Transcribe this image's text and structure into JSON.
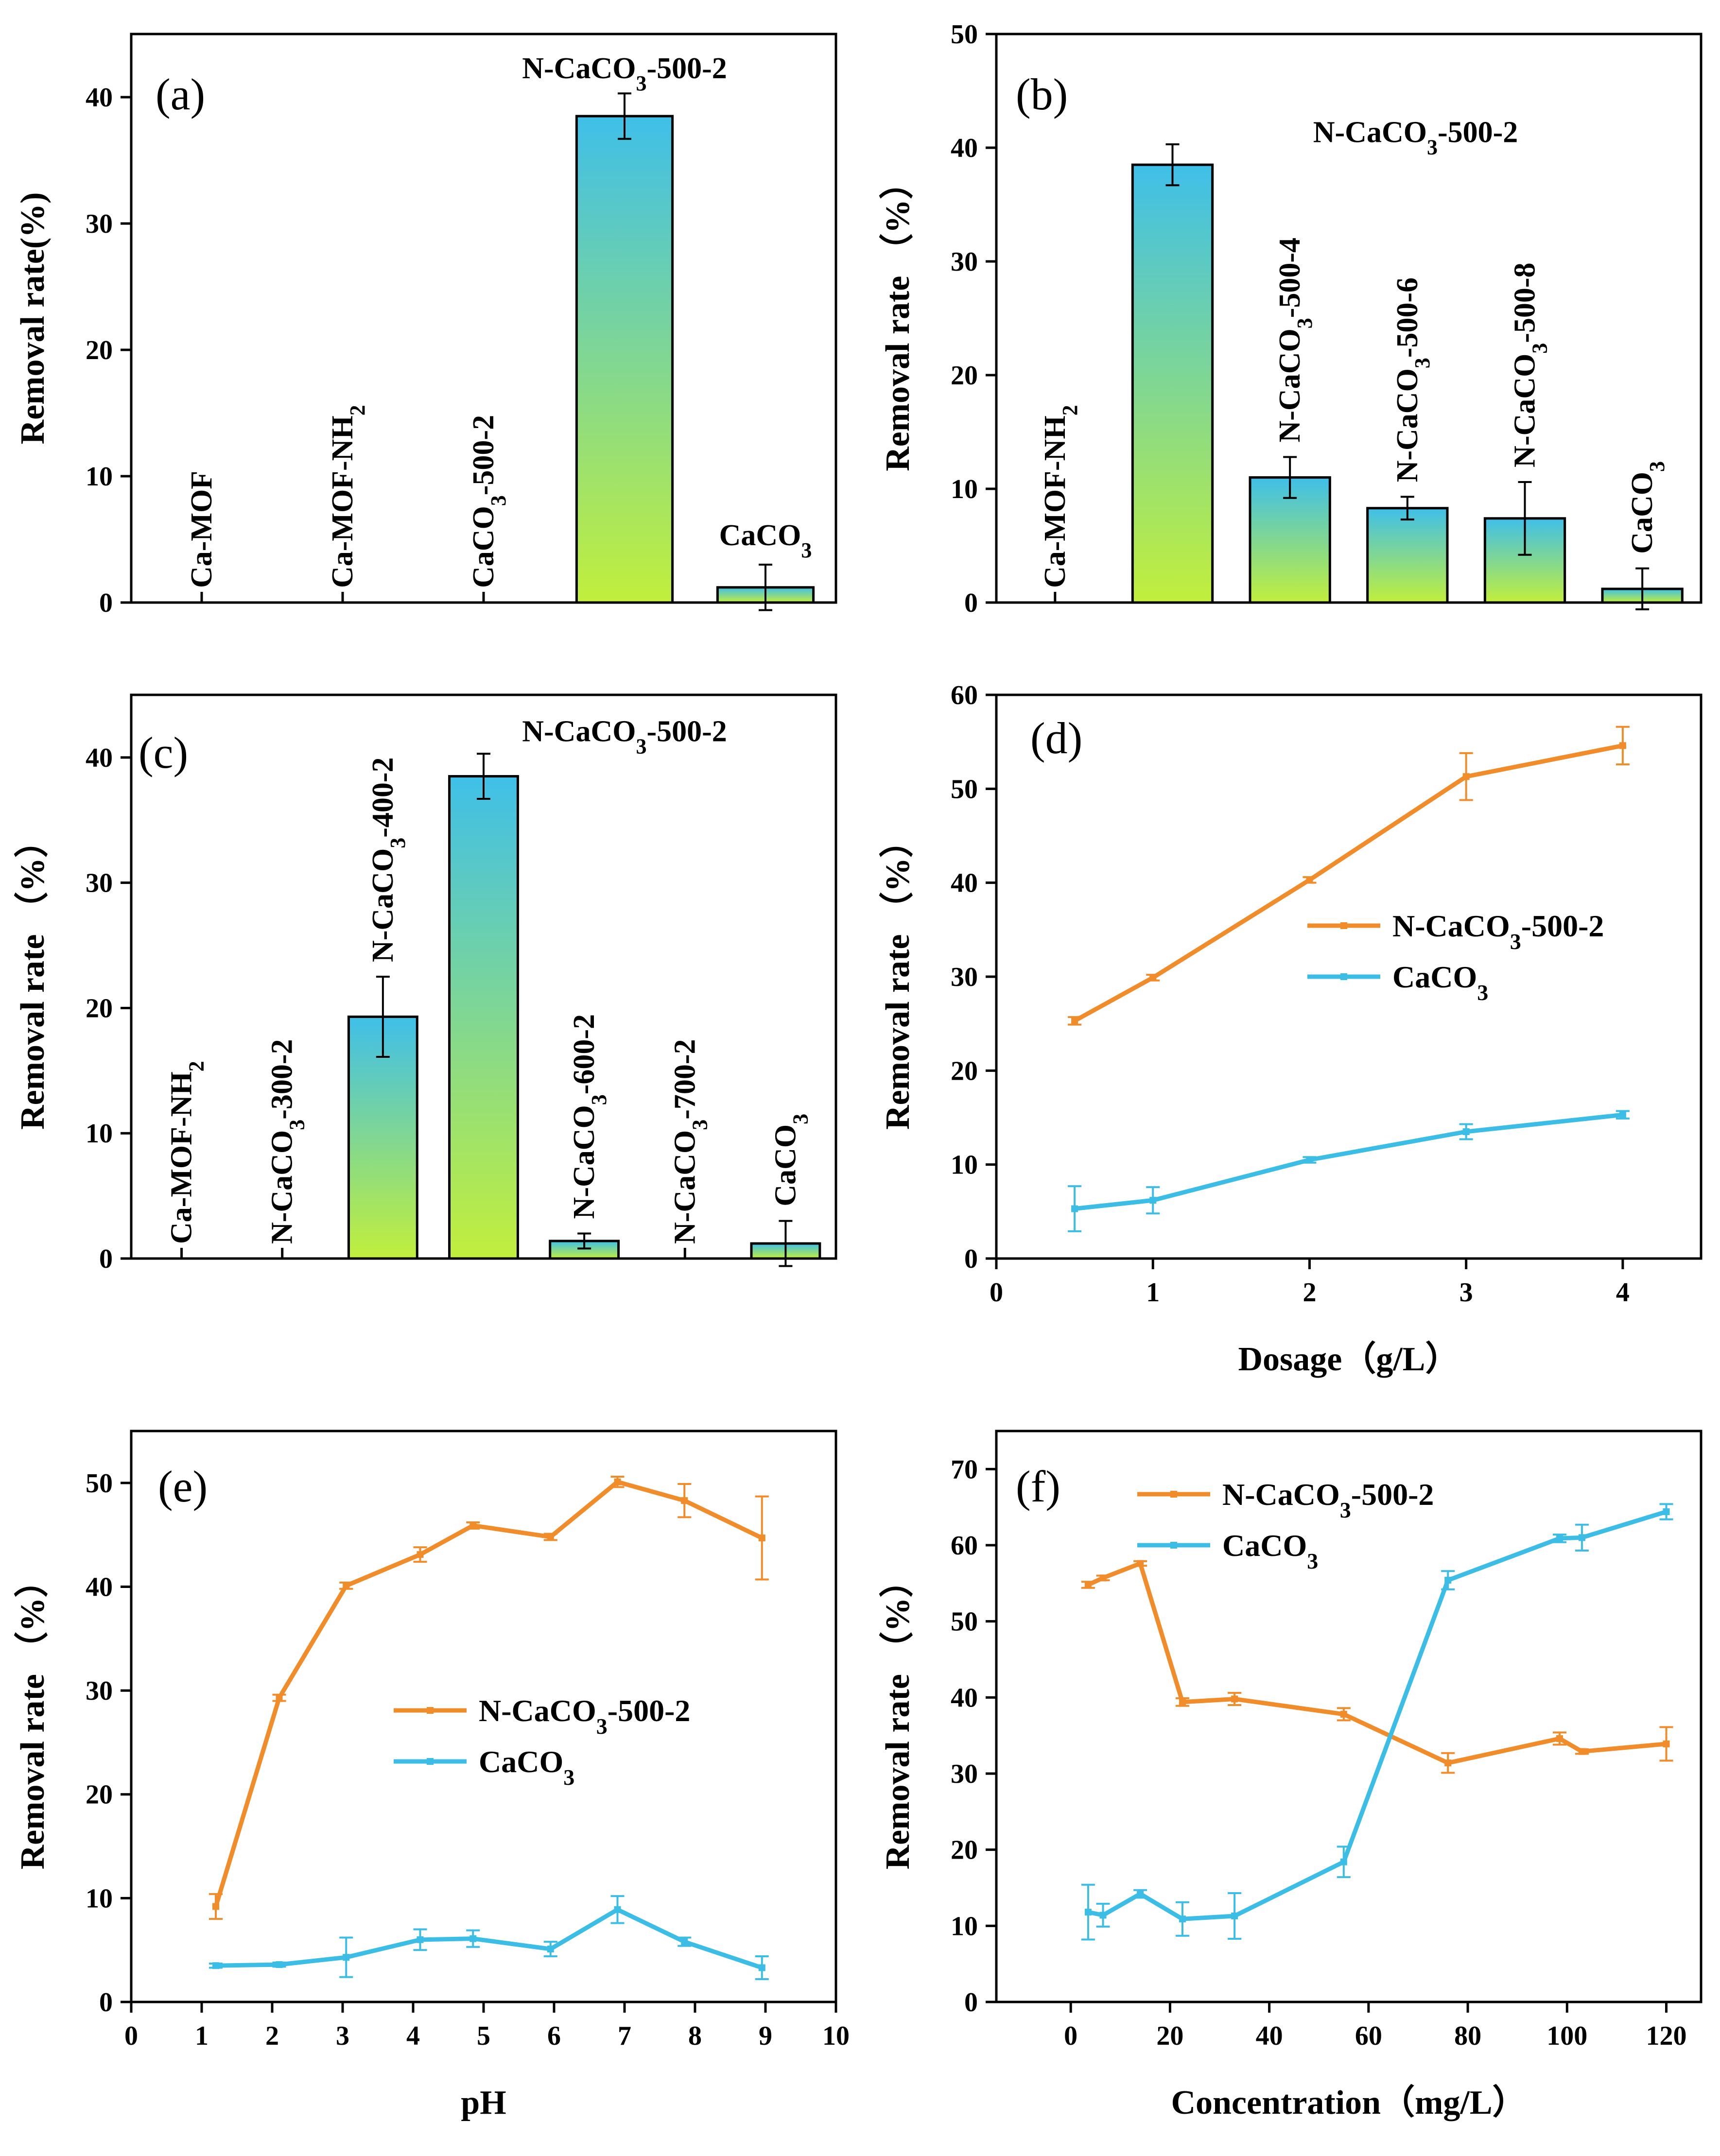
{
  "colors": {
    "orange": "#f08c2a",
    "blue": "#3cbde6",
    "bar_top": "#3fbfe9",
    "bar_bottom": "#c2ef3c"
  },
  "chart_data": [
    {
      "id": "a",
      "type": "bar",
      "panel_label": "(a)",
      "ylabel": "Removal rate(%)",
      "xlabel": "",
      "ylim": [
        0,
        45
      ],
      "yticks": [
        0,
        10,
        20,
        30,
        40
      ],
      "bar_labels": [
        {
          "base": "Ca-MOF",
          "sub": "",
          "tail": ""
        },
        {
          "base": "Ca-MOF-NH",
          "sub": "2",
          "tail": ""
        },
        {
          "base": "CaCO",
          "sub": "3",
          "tail": "-500-2"
        },
        {
          "base": "N-CaCO",
          "sub": "3",
          "tail": "-500-2"
        },
        {
          "base": "CaCO",
          "sub": "3",
          "tail": ""
        }
      ],
      "values": [
        0,
        0,
        0,
        38.5,
        1.2
      ],
      "errors": [
        0,
        0,
        0,
        1.8,
        1.8
      ]
    },
    {
      "id": "b",
      "type": "bar",
      "panel_label": "(b)",
      "ylabel": "Removal rate （%）",
      "xlabel": "",
      "ylim": [
        0,
        50
      ],
      "yticks": [
        0,
        10,
        20,
        30,
        40,
        50
      ],
      "bar_labels": [
        {
          "base": "Ca-MOF-NH",
          "sub": "2",
          "tail": ""
        },
        {
          "base": "N-CaCO",
          "sub": "3",
          "tail": "-500-2"
        },
        {
          "base": "N-CaCO",
          "sub": "3",
          "tail": "-500-4"
        },
        {
          "base": "N-CaCO",
          "sub": "3",
          "tail": "-500-6"
        },
        {
          "base": "N-CaCO",
          "sub": "3",
          "tail": "-500-8"
        },
        {
          "base": "CaCO",
          "sub": "3",
          "tail": ""
        }
      ],
      "values": [
        0,
        38.5,
        11.0,
        8.3,
        7.4,
        1.2
      ],
      "errors": [
        0,
        1.8,
        1.8,
        1.0,
        3.2,
        1.8
      ]
    },
    {
      "id": "c",
      "type": "bar",
      "panel_label": "(c)",
      "ylabel": "Removal rate （%）",
      "xlabel": "",
      "ylim": [
        0,
        45
      ],
      "yticks": [
        0,
        10,
        20,
        30,
        40
      ],
      "bar_labels": [
        {
          "base": "Ca-MOF-NH",
          "sub": "2",
          "tail": ""
        },
        {
          "base": "N-CaCO",
          "sub": "3",
          "tail": "-300-2"
        },
        {
          "base": "N-CaCO",
          "sub": "3",
          "tail": "-400-2"
        },
        {
          "base": "N-CaCO",
          "sub": "3",
          "tail": "-500-2"
        },
        {
          "base": "N-CaCO",
          "sub": "3",
          "tail": "-600-2"
        },
        {
          "base": "N-CaCO",
          "sub": "3",
          "tail": "-700-2"
        },
        {
          "base": "CaCO",
          "sub": "3",
          "tail": ""
        }
      ],
      "values": [
        0,
        0,
        19.3,
        38.5,
        1.4,
        0,
        1.2
      ],
      "errors": [
        0,
        0,
        3.2,
        1.8,
        0.6,
        0,
        1.8
      ]
    },
    {
      "id": "d",
      "type": "line",
      "panel_label": "(d)",
      "xlabel": "Dosage（g/L）",
      "ylabel": "Removal rate （%）",
      "xlim": [
        0,
        4.5
      ],
      "ylim": [
        0,
        60
      ],
      "xticks": [
        0,
        1,
        2,
        3,
        4
      ],
      "yticks": [
        0,
        10,
        20,
        30,
        40,
        50,
        60
      ],
      "series": [
        {
          "name_base": "N-CaCO",
          "name_sub": "3",
          "name_tail": "-500-2",
          "color": "#f08c2a",
          "x": [
            0.5,
            1,
            2,
            3,
            4
          ],
          "y": [
            25.3,
            29.9,
            40.3,
            51.3,
            54.6
          ],
          "err": [
            0.4,
            0.3,
            0.3,
            2.5,
            2.0
          ]
        },
        {
          "name_base": "CaCO",
          "name_sub": "3",
          "name_tail": "",
          "color": "#3cbde6",
          "x": [
            0.5,
            1,
            2,
            3,
            4
          ],
          "y": [
            5.3,
            6.2,
            10.5,
            13.5,
            15.3
          ],
          "err": [
            2.4,
            1.4,
            0.3,
            0.8,
            0.4
          ]
        }
      ]
    },
    {
      "id": "e",
      "type": "line",
      "panel_label": "(e)",
      "xlabel": "pH",
      "ylabel": "Removal rate （%）",
      "xlim": [
        0,
        10
      ],
      "ylim": [
        0,
        55
      ],
      "xticks": [
        0,
        1,
        2,
        3,
        4,
        5,
        6,
        7,
        8,
        9,
        10
      ],
      "yticks": [
        0,
        10,
        20,
        30,
        40,
        50
      ],
      "series": [
        {
          "name_base": "N-CaCO",
          "name_sub": "3",
          "name_tail": "-500-2",
          "color": "#f08c2a",
          "x": [
            1.2,
            2.1,
            3.05,
            4.1,
            4.85,
            5.95,
            6.9,
            7.85,
            8.95
          ],
          "y": [
            9.2,
            29.3,
            40.1,
            43.1,
            45.9,
            44.8,
            50.1,
            48.3,
            44.7
          ],
          "err": [
            1.2,
            0.3,
            0.3,
            0.7,
            0.3,
            0.3,
            0.5,
            1.6,
            4.0
          ]
        },
        {
          "name_base": "CaCO",
          "name_sub": "3",
          "name_tail": "",
          "color": "#3cbde6",
          "x": [
            1.2,
            2.1,
            3.05,
            4.1,
            4.85,
            5.95,
            6.9,
            7.85,
            8.95
          ],
          "y": [
            3.5,
            3.6,
            4.3,
            6.0,
            6.1,
            5.1,
            8.9,
            5.8,
            3.3
          ],
          "err": [
            0.2,
            0.2,
            1.9,
            1.0,
            0.8,
            0.7,
            1.3,
            0.4,
            1.1
          ]
        }
      ]
    },
    {
      "id": "f",
      "type": "line",
      "panel_label": "(f)",
      "xlabel": "Concentration（mg/L）",
      "ylabel": "Removal rate （%）",
      "xlim": [
        -15,
        127
      ],
      "ylim": [
        0,
        75
      ],
      "xticks": [
        0,
        20,
        40,
        60,
        80,
        100,
        120
      ],
      "yticks": [
        0,
        10,
        20,
        30,
        40,
        50,
        60,
        70
      ],
      "series": [
        {
          "name_base": "N-CaCO",
          "name_sub": "3",
          "name_tail": "-500-2",
          "color": "#f08c2a",
          "x": [
            3.5,
            6.5,
            14,
            22.5,
            33,
            55,
            76,
            98.5,
            103,
            120
          ],
          "y": [
            54.8,
            55.7,
            57.6,
            39.4,
            39.8,
            37.8,
            31.4,
            34.6,
            32.9,
            33.9
          ],
          "err": [
            0.4,
            0.3,
            0.3,
            0.5,
            0.8,
            0.8,
            1.3,
            0.8,
            0.3,
            2.2
          ]
        },
        {
          "name_base": "CaCO",
          "name_sub": "3",
          "name_tail": "",
          "color": "#3cbde6",
          "x": [
            3.5,
            6.5,
            14,
            22.5,
            33,
            55,
            76,
            98.5,
            103,
            120
          ],
          "y": [
            11.8,
            11.4,
            14.2,
            10.9,
            11.3,
            18.4,
            55.4,
            60.9,
            61.0,
            64.4
          ],
          "err": [
            3.6,
            1.5,
            0.5,
            2.2,
            3.0,
            2.0,
            1.2,
            0.5,
            1.7,
            1.0
          ]
        }
      ]
    }
  ]
}
